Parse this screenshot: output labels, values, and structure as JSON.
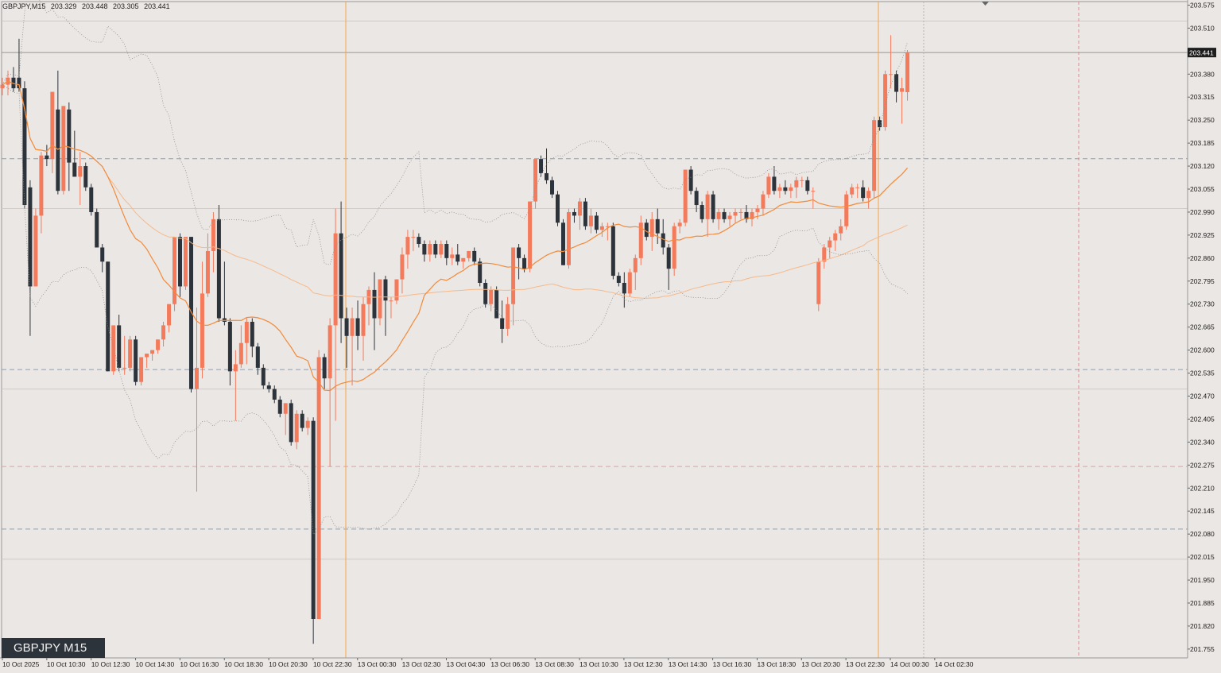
{
  "header": {
    "symbol_tf": "GBPJPY,M15",
    "open": "203.329",
    "high": "203.448",
    "low": "203.305",
    "close": "203.441"
  },
  "badge": "GBPJPY M15",
  "current_price_label": "203.441",
  "colors": {
    "background": "#ebe7e4",
    "bull": "#f47a5c",
    "bear": "#2c333b",
    "ma_fast": "#f28a3a",
    "ma_slow": "#f6b98a",
    "session_line": "#f5a54a",
    "dashed_blue": "#8aa0b8",
    "dashed_red": "#e0a0a0"
  },
  "chart_data": {
    "type": "candlestick",
    "symbol": "GBPJPY",
    "timeframe": "M15",
    "y_ticks": [
      "203.575",
      "203.510",
      "203.380",
      "203.315",
      "203.250",
      "203.185",
      "203.120",
      "203.055",
      "202.990",
      "202.925",
      "202.860",
      "202.795",
      "202.730",
      "202.665",
      "202.600",
      "202.535",
      "202.470",
      "202.405",
      "202.340",
      "202.275",
      "202.210",
      "202.145",
      "202.080",
      "202.015",
      "201.950",
      "201.885",
      "201.820",
      "201.755"
    ],
    "ylim": [
      201.73,
      203.585
    ],
    "x_ticks": [
      "10 Oct 2025",
      "10 Oct 10:30",
      "10 Oct 12:30",
      "10 Oct 14:30",
      "10 Oct 16:30",
      "10 Oct 18:30",
      "10 Oct 20:30",
      "10 Oct 22:30",
      "13 Oct 00:30",
      "13 Oct 02:30",
      "13 Oct 04:30",
      "13 Oct 06:30",
      "13 Oct 08:30",
      "13 Oct 10:30",
      "13 Oct 12:30",
      "13 Oct 14:30",
      "13 Oct 16:30",
      "13 Oct 18:30",
      "13 Oct 20:30",
      "13 Oct 22:30",
      "14 Oct 00:30",
      "14 Oct 02:30"
    ],
    "horizontal_levels": {
      "dashed_blue": [
        203.141,
        202.545,
        202.094
      ],
      "dashed_red": [
        202.271
      ],
      "solid_grey": [
        203.441
      ],
      "light_grey": [
        203.53,
        203.0,
        202.49,
        202.009
      ]
    },
    "candles": [
      [
        203.34,
        203.37,
        203.32,
        203.35
      ],
      [
        203.35,
        203.39,
        203.32,
        203.37
      ],
      [
        203.37,
        203.4,
        203.33,
        203.34
      ],
      [
        203.37,
        203.48,
        203.33,
        203.34
      ],
      [
        203.34,
        203.36,
        203.0,
        203.01
      ],
      [
        203.06,
        203.08,
        202.64,
        202.78
      ],
      [
        202.78,
        203.0,
        202.78,
        202.98
      ],
      [
        202.98,
        203.16,
        202.93,
        203.15
      ],
      [
        203.15,
        203.18,
        203.12,
        203.14
      ],
      [
        203.14,
        203.32,
        203.1,
        203.33
      ],
      [
        203.28,
        203.39,
        203.04,
        203.05
      ],
      [
        203.05,
        203.28,
        203.04,
        203.29
      ],
      [
        203.28,
        203.3,
        203.05,
        203.13
      ],
      [
        203.13,
        203.22,
        203.09,
        203.09
      ],
      [
        203.09,
        203.16,
        203.01,
        203.12
      ],
      [
        203.12,
        203.13,
        203.05,
        203.06
      ],
      [
        203.06,
        203.07,
        202.98,
        202.99
      ],
      [
        202.99,
        203.0,
        202.9,
        202.89
      ],
      [
        202.89,
        202.9,
        202.82,
        202.85
      ],
      [
        202.85,
        202.85,
        202.54,
        202.54
      ],
      [
        202.54,
        202.66,
        202.53,
        202.67
      ],
      [
        202.67,
        202.7,
        202.54,
        202.55
      ],
      [
        202.55,
        202.64,
        202.53,
        202.55
      ],
      [
        202.55,
        202.64,
        202.54,
        202.63
      ],
      [
        202.63,
        202.64,
        202.5,
        202.51
      ],
      [
        202.51,
        202.58,
        202.5,
        202.58
      ],
      [
        202.58,
        202.59,
        202.55,
        202.59
      ],
      [
        202.59,
        202.6,
        202.57,
        202.6
      ],
      [
        202.6,
        202.63,
        202.59,
        202.63
      ],
      [
        202.63,
        202.68,
        202.61,
        202.67
      ],
      [
        202.67,
        202.73,
        202.65,
        202.73
      ],
      [
        202.73,
        202.91,
        202.71,
        202.92
      ],
      [
        202.92,
        202.93,
        202.75,
        202.78
      ],
      [
        202.78,
        202.91,
        202.77,
        202.92
      ],
      [
        202.92,
        202.92,
        202.48,
        202.49
      ],
      [
        202.49,
        202.72,
        202.2,
        202.55
      ],
      [
        202.55,
        202.85,
        202.52,
        202.76
      ],
      [
        202.76,
        202.93,
        202.75,
        202.88
      ],
      [
        202.88,
        202.99,
        202.82,
        202.97
      ],
      [
        202.97,
        203.01,
        202.68,
        202.69
      ],
      [
        202.69,
        202.85,
        202.67,
        202.68
      ],
      [
        202.68,
        202.69,
        202.5,
        202.54
      ],
      [
        202.54,
        202.6,
        202.4,
        202.56
      ],
      [
        202.56,
        202.67,
        202.55,
        202.62
      ],
      [
        202.62,
        202.69,
        202.56,
        202.68
      ],
      [
        202.68,
        202.69,
        202.58,
        202.61
      ],
      [
        202.61,
        202.62,
        202.53,
        202.55
      ],
      [
        202.55,
        202.56,
        202.49,
        202.5
      ],
      [
        202.5,
        202.51,
        202.48,
        202.49
      ],
      [
        202.49,
        202.5,
        202.45,
        202.46
      ],
      [
        202.46,
        202.47,
        202.41,
        202.42
      ],
      [
        202.42,
        202.45,
        202.36,
        202.45
      ],
      [
        202.45,
        202.46,
        202.33,
        202.34
      ],
      [
        202.34,
        202.43,
        202.32,
        202.42
      ],
      [
        202.42,
        202.43,
        202.37,
        202.38
      ],
      [
        202.38,
        202.41,
        202.36,
        202.4
      ],
      [
        202.4,
        202.41,
        201.77,
        201.84
      ],
      [
        201.84,
        202.6,
        201.84,
        202.58
      ],
      [
        202.58,
        202.59,
        202.49,
        202.52
      ],
      [
        202.52,
        202.69,
        202.27,
        202.67
      ],
      [
        202.67,
        203.0,
        202.4,
        202.93
      ],
      [
        202.93,
        203.02,
        202.62,
        202.69
      ],
      [
        202.69,
        202.72,
        202.55,
        202.64
      ],
      [
        202.64,
        202.72,
        202.5,
        202.69
      ],
      [
        202.69,
        202.74,
        202.6,
        202.64
      ],
      [
        202.64,
        202.75,
        202.57,
        202.73
      ],
      [
        202.73,
        202.78,
        202.67,
        202.77
      ],
      [
        202.77,
        202.82,
        202.6,
        202.69
      ],
      [
        202.69,
        202.8,
        202.67,
        202.8
      ],
      [
        202.8,
        202.81,
        202.64,
        202.74
      ],
      [
        202.74,
        202.75,
        202.69,
        202.74
      ],
      [
        202.74,
        202.8,
        202.73,
        202.8
      ],
      [
        202.8,
        202.89,
        202.76,
        202.87
      ],
      [
        202.87,
        202.94,
        202.83,
        202.92
      ],
      [
        202.92,
        202.94,
        202.88,
        202.92
      ],
      [
        202.92,
        202.93,
        202.89,
        202.9
      ],
      [
        202.9,
        202.91,
        202.85,
        202.87
      ],
      [
        202.87,
        202.91,
        202.85,
        202.9
      ],
      [
        202.9,
        202.91,
        202.86,
        202.87
      ],
      [
        202.87,
        202.91,
        202.86,
        202.9
      ],
      [
        202.9,
        202.91,
        202.84,
        202.86
      ],
      [
        202.86,
        202.89,
        202.84,
        202.87
      ],
      [
        202.87,
        202.9,
        202.84,
        202.85
      ],
      [
        202.85,
        202.86,
        202.83,
        202.86
      ],
      [
        202.86,
        202.88,
        202.85,
        202.88
      ],
      [
        202.88,
        202.89,
        202.84,
        202.85
      ],
      [
        202.85,
        202.86,
        202.78,
        202.79
      ],
      [
        202.79,
        202.8,
        202.72,
        202.73
      ],
      [
        202.73,
        202.78,
        202.71,
        202.77
      ],
      [
        202.77,
        202.78,
        202.69,
        202.69
      ],
      [
        202.69,
        202.74,
        202.62,
        202.66
      ],
      [
        202.66,
        202.75,
        202.64,
        202.73
      ],
      [
        202.73,
        202.89,
        202.67,
        202.89
      ],
      [
        202.89,
        202.9,
        202.8,
        202.86
      ],
      [
        202.86,
        202.87,
        202.82,
        202.83
      ],
      [
        202.83,
        203.02,
        202.82,
        203.02
      ],
      [
        203.02,
        203.14,
        203.0,
        203.14
      ],
      [
        203.14,
        203.15,
        203.09,
        203.1
      ],
      [
        203.1,
        203.17,
        203.07,
        203.08
      ],
      [
        203.08,
        203.09,
        203.03,
        203.04
      ],
      [
        203.04,
        203.05,
        202.95,
        202.96
      ],
      [
        202.96,
        202.97,
        202.84,
        202.84
      ],
      [
        202.84,
        203.0,
        202.83,
        202.99
      ],
      [
        202.99,
        203.0,
        202.96,
        202.98
      ],
      [
        202.98,
        203.03,
        202.94,
        203.02
      ],
      [
        203.02,
        203.03,
        202.94,
        202.95
      ],
      [
        202.95,
        203.0,
        202.93,
        202.98
      ],
      [
        202.98,
        202.99,
        202.93,
        202.94
      ],
      [
        202.94,
        202.96,
        202.92,
        202.95
      ],
      [
        202.95,
        202.96,
        202.91,
        202.95
      ],
      [
        202.95,
        202.96,
        202.8,
        202.81
      ],
      [
        202.81,
        202.82,
        202.78,
        202.79
      ],
      [
        202.79,
        202.82,
        202.72,
        202.76
      ],
      [
        202.76,
        202.83,
        202.75,
        202.82
      ],
      [
        202.82,
        202.87,
        202.77,
        202.86
      ],
      [
        202.86,
        202.98,
        202.84,
        202.96
      ],
      [
        202.96,
        202.97,
        202.91,
        202.92
      ],
      [
        202.92,
        202.99,
        202.88,
        202.97
      ],
      [
        202.97,
        203.0,
        202.9,
        202.93
      ],
      [
        202.93,
        202.97,
        202.87,
        202.89
      ],
      [
        202.89,
        202.9,
        202.77,
        202.83
      ],
      [
        202.83,
        202.96,
        202.81,
        202.95
      ],
      [
        202.95,
        202.97,
        202.93,
        202.96
      ],
      [
        202.96,
        203.11,
        202.95,
        203.11
      ],
      [
        203.11,
        203.12,
        203.04,
        203.05
      ],
      [
        203.05,
        203.06,
        202.99,
        203.01
      ],
      [
        203.01,
        203.02,
        202.96,
        202.97
      ],
      [
        202.97,
        203.05,
        202.92,
        203.04
      ],
      [
        203.04,
        203.05,
        202.96,
        202.97
      ],
      [
        202.97,
        203.0,
        202.94,
        202.99
      ],
      [
        202.99,
        203.0,
        202.96,
        202.97
      ],
      [
        202.97,
        202.99,
        202.95,
        202.98
      ],
      [
        202.98,
        203.0,
        202.96,
        202.99
      ],
      [
        202.99,
        203.0,
        202.97,
        202.99
      ],
      [
        202.99,
        203.01,
        202.96,
        202.97
      ],
      [
        202.97,
        203.0,
        202.95,
        202.99
      ],
      [
        202.99,
        203.01,
        202.97,
        203.0
      ],
      [
        203.0,
        203.05,
        202.98,
        203.04
      ],
      [
        203.04,
        203.1,
        203.03,
        203.09
      ],
      [
        203.09,
        203.12,
        203.04,
        203.05
      ],
      [
        203.05,
        203.07,
        203.03,
        203.06
      ],
      [
        203.06,
        203.08,
        203.04,
        203.05
      ],
      [
        203.05,
        203.07,
        203.03,
        203.06
      ],
      [
        203.06,
        203.09,
        203.03,
        203.08
      ],
      [
        203.08,
        203.09,
        203.06,
        203.08
      ],
      [
        203.08,
        203.09,
        203.04,
        203.05
      ],
      [
        203.05,
        203.06,
        203.0,
        203.05
      ],
      [
        202.73,
        202.86,
        202.71,
        202.85
      ],
      [
        202.85,
        202.9,
        202.83,
        202.89
      ],
      [
        202.89,
        202.92,
        202.86,
        202.91
      ],
      [
        202.91,
        202.94,
        202.88,
        202.93
      ],
      [
        202.93,
        202.97,
        202.91,
        202.95
      ],
      [
        202.95,
        203.05,
        202.94,
        203.04
      ],
      [
        203.04,
        203.07,
        203.03,
        203.06
      ],
      [
        203.06,
        203.07,
        203.03,
        203.06
      ],
      [
        203.06,
        203.08,
        203.02,
        203.03
      ],
      [
        203.03,
        203.06,
        203.0,
        203.05
      ],
      [
        203.05,
        203.26,
        203.03,
        203.25
      ],
      [
        203.25,
        203.26,
        203.22,
        203.23
      ],
      [
        203.23,
        203.39,
        203.22,
        203.38
      ],
      [
        203.38,
        203.49,
        203.34,
        203.38
      ],
      [
        203.38,
        203.39,
        203.3,
        203.33
      ],
      [
        203.33,
        203.37,
        203.24,
        203.34
      ],
      [
        203.329,
        203.448,
        203.305,
        203.441
      ]
    ]
  }
}
